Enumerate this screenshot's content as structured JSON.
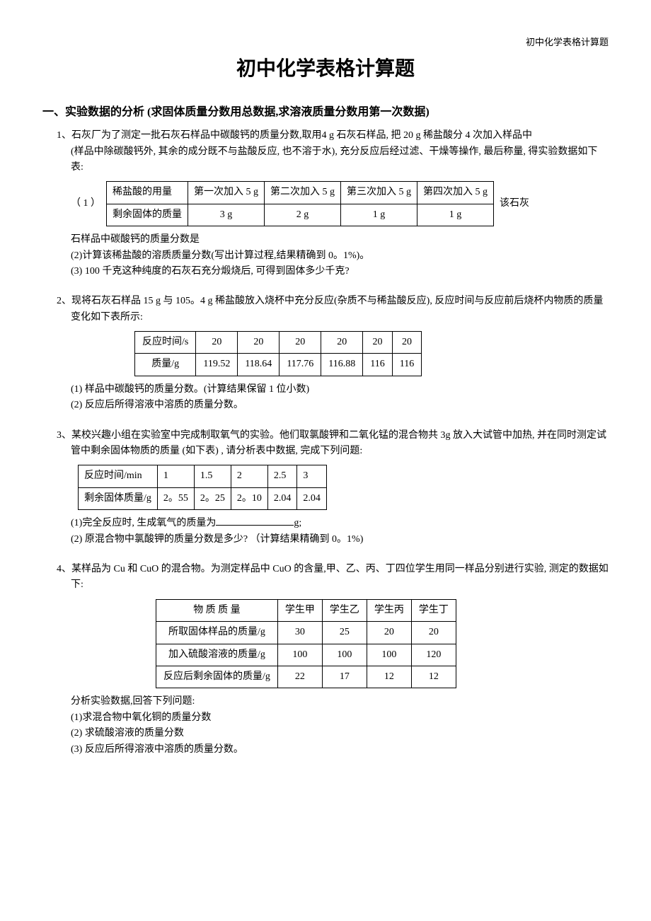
{
  "header": "初中化学表格计算题",
  "title": "初中化学表格计算题",
  "section1_title": "一、实验数据的分析 (求固体质量分数用总数据,求溶液质量分数用第一次数据)",
  "p1": {
    "num": "1、",
    "intro": "石灰厂为了测定一批石灰石样品中碳酸钙的质量分数,取用4 g 石灰石样品, 把 20 g 稀盐酸分 4 次加入样品中",
    "detail": "(样品中除碳酸钙外, 其余的成分既不与盐酸反应, 也不溶于水), 充分反应后经过滤、干燥等操作, 最后称量, 得实验数据如下表:",
    "table": {
      "rows": [
        [
          "稀盐酸的用量",
          "第一次加入 5 g",
          "第二次加入 5 g",
          "第三次加入 5 g",
          "第四次加入 5 g"
        ],
        [
          "剩余固体的质量",
          "3 g",
          "2 g",
          "1 g",
          "1 g"
        ]
      ]
    },
    "q1_prefix": "（ 1 ）",
    "q1_suffix": "该石灰",
    "q1_cont": "石样品中碳酸钙的质量分数是",
    "q2": "(2)计算该稀盐酸的溶质质量分数(写出计算过程,结果精确到 0。1%)。",
    "q3": "(3) 100 千克这种纯度的石灰石充分煅烧后, 可得到固体多少千克?"
  },
  "p2": {
    "num": "2、",
    "intro": "现将石灰石样品 15 g 与 105。4 g 稀盐酸放入烧杯中充分反应(杂质不与稀盐酸反应), 反应时间与反应前后烧杯内物质的质量变化如下表所示:",
    "table": {
      "rows": [
        [
          "反应时间/s",
          "20",
          "20",
          "20",
          "20",
          "20",
          "20"
        ],
        [
          "质量/g",
          "119.52",
          "118.64",
          "117.76",
          "116.88",
          "116",
          "116"
        ]
      ]
    },
    "q1": "(1) 样品中碳酸钙的质量分数。(计算结果保留 1 位小数)",
    "q2": "(2) 反应后所得溶液中溶质的质量分数。"
  },
  "p3": {
    "num": "3、",
    "intro": "某校兴趣小组在实验室中完成制取氧气的实验。他们取氯酸钾和二氧化锰的混合物共 3g 放入大试管中加热, 并在同时测定试管中剩余固体物质的质量 (如下表) , 请分析表中数据, 完成下列问题:",
    "table": {
      "rows": [
        [
          "反应时间/min",
          "1",
          "1.5",
          "2",
          "2.5",
          "3"
        ],
        [
          "剩余固体质量/g",
          "2。55",
          "2。25",
          "2。10",
          "2.04",
          "2.04"
        ]
      ]
    },
    "q1": "(1)完全反应时, 生成氧气的质量为",
    "q1_unit": "g;",
    "q2": "(2) 原混合物中氯酸钾的质量分数是多少? （计算结果精确到 0。1%)"
  },
  "p4": {
    "num": "4、",
    "intro": "某样品为 Cu 和 CuO 的混合物。为测定样品中 CuO 的含量,甲、乙、丙、丁四位学生用同一样品分别进行实验, 测定的数据如下:",
    "table": {
      "header": [
        "物 质 质 量",
        "学生甲",
        "学生乙",
        "学生丙",
        "学生丁"
      ],
      "rows": [
        [
          "所取固体样品的质量/g",
          "30",
          "25",
          "20",
          "20"
        ],
        [
          "加入硫酸溶液的质量/g",
          "100",
          "100",
          "100",
          "120"
        ],
        [
          "反应后剩余固体的质量/g",
          "22",
          "17",
          "12",
          "12"
        ]
      ]
    },
    "post": "分析实验数据,回答下列问题:",
    "q1": "(1)求混合物中氧化铜的质量分数",
    "q2": "(2) 求硫酸溶液的质量分数",
    "q3": "(3) 反应后所得溶液中溶质的质量分数。"
  }
}
